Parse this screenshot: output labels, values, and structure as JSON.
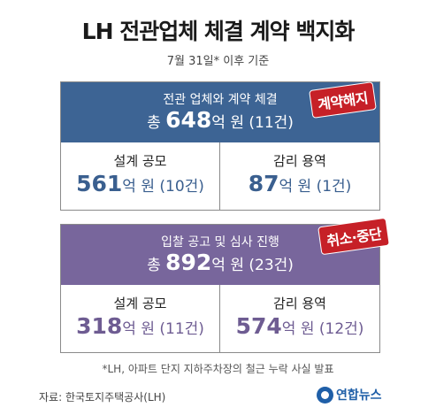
{
  "title": "LH 전관업체 체결 계약 백지화",
  "subtitle": "7월 31일* 이후 기준",
  "section1": {
    "label": "전관 업체와 계약 체결",
    "total_prefix": "총 ",
    "total_number": "648",
    "total_suffix": "억 원 (11건)",
    "stamp": "계약해지",
    "color": "#3d6494",
    "items": [
      {
        "label": "설계 공모",
        "number": "561",
        "suffix": "억 원 (10건)"
      },
      {
        "label": "감리 용역",
        "number": "87",
        "suffix": "억 원 (1건)"
      }
    ]
  },
  "section2": {
    "label": "입찰 공고 및 심사 진행",
    "total_prefix": "총 ",
    "total_number": "892",
    "total_suffix": "억 원 (23건)",
    "stamp": "취소·중단",
    "color": "#78669c",
    "items": [
      {
        "label": "설계 공모",
        "number": "318",
        "suffix": "억 원 (11건)"
      },
      {
        "label": "감리 용역",
        "number": "574",
        "suffix": "억 원 (12건)"
      }
    ]
  },
  "footnote": "*LH, 아파트 단지 지하주차장의 철근 누락 사실 발표",
  "source": "자료: 한국토지주택공사(LH)",
  "logo": {
    "text": "연합뉴스",
    "icon": "yonhap-logo-icon"
  },
  "stamp_color": "#c62027"
}
